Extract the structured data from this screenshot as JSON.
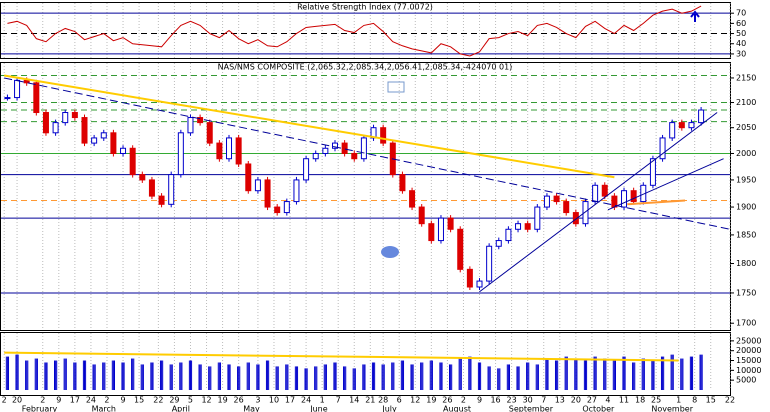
{
  "chart_data": [
    {
      "type": "line",
      "title": "Relative Strength Index (77.0072)",
      "color": "#cc0000",
      "x": [
        1,
        4,
        7,
        10,
        13,
        16,
        19,
        22,
        25,
        28,
        31,
        34,
        37,
        40,
        43,
        46,
        49,
        52,
        55,
        58,
        61,
        64,
        67,
        70,
        73,
        76,
        79,
        82,
        85,
        88,
        91,
        94,
        97,
        100,
        103,
        106,
        109,
        112,
        115,
        118,
        121,
        124,
        127,
        130,
        133,
        136,
        139,
        142,
        145,
        148,
        151,
        154,
        157,
        160,
        163,
        166,
        169,
        172,
        175,
        178,
        181,
        184,
        187,
        190,
        193,
        196,
        199,
        202,
        205,
        208,
        211,
        214,
        217
      ],
      "values": [
        60,
        62,
        58,
        45,
        42,
        50,
        55,
        52,
        44,
        47,
        50,
        43,
        46,
        40,
        39,
        38,
        37,
        48,
        58,
        62,
        58,
        50,
        46,
        53,
        45,
        40,
        44,
        38,
        37,
        42,
        50,
        56,
        57,
        58,
        59,
        53,
        51,
        58,
        60,
        52,
        42,
        38,
        35,
        33,
        31,
        40,
        37,
        30,
        28,
        32,
        45,
        46,
        50,
        52,
        48,
        58,
        60,
        56,
        50,
        46,
        57,
        62,
        55,
        50,
        58,
        53,
        60,
        68,
        72,
        74,
        70,
        72,
        77
      ],
      "xlim": [
        -1,
        226
      ],
      "ylim": [
        26,
        80
      ],
      "yticks": [
        30,
        40,
        50,
        60,
        70
      ],
      "levels": [
        {
          "value": 70,
          "color": "#000099",
          "dash": false
        },
        {
          "value": 50,
          "color": "#000000",
          "dash": true
        },
        {
          "value": 30,
          "color": "#000099",
          "dash": false
        }
      ]
    },
    {
      "type": "candlestick",
      "title": "NAS/NMS COMPOSITE (2,065.32,2,085.34,2,056.41,2,085.34,-424070 01)",
      "log_scale": true,
      "up_color": "#0000cc",
      "down_color": "#dd0000",
      "x": [
        1,
        4,
        7,
        10,
        13,
        16,
        19,
        22,
        25,
        28,
        31,
        34,
        37,
        40,
        43,
        46,
        49,
        52,
        55,
        58,
        61,
        64,
        67,
        70,
        73,
        76,
        79,
        82,
        85,
        88,
        91,
        94,
        97,
        100,
        103,
        106,
        109,
        112,
        115,
        118,
        121,
        124,
        127,
        130,
        133,
        136,
        139,
        142,
        145,
        148,
        151,
        154,
        157,
        160,
        163,
        166,
        169,
        172,
        175,
        178,
        181,
        184,
        187,
        190,
        193,
        196,
        199,
        202,
        205,
        208,
        211,
        214,
        217
      ],
      "values": [
        2110,
        2145,
        2140,
        2080,
        2040,
        2060,
        2080,
        2070,
        2020,
        2030,
        2040,
        2000,
        2010,
        1960,
        1950,
        1920,
        1905,
        1960,
        2040,
        2070,
        2060,
        2020,
        1990,
        2030,
        1980,
        1930,
        1950,
        1900,
        1890,
        1910,
        1950,
        1990,
        2000,
        2010,
        2020,
        2000,
        1990,
        2030,
        2050,
        2020,
        1960,
        1930,
        1900,
        1870,
        1840,
        1880,
        1860,
        1790,
        1760,
        1770,
        1830,
        1840,
        1860,
        1870,
        1860,
        1900,
        1920,
        1910,
        1890,
        1870,
        1910,
        1940,
        1920,
        1900,
        1930,
        1910,
        1940,
        1990,
        2030,
        2060,
        2050,
        2060,
        2085
      ],
      "xlim": [
        -1,
        226
      ],
      "ylim": [
        1689,
        2181
      ],
      "yticks": [
        1700,
        1750,
        1800,
        1850,
        1900,
        1950,
        2000,
        2050,
        2100,
        2150
      ],
      "levels": [
        {
          "value": 2155,
          "color": "#339933",
          "dash": true
        },
        {
          "value": 2100,
          "color": "#339933",
          "dash": true
        },
        {
          "value": 2085,
          "color": "#339933",
          "dash": true
        },
        {
          "value": 2062,
          "color": "#339933",
          "dash": true
        },
        {
          "value": 2000,
          "color": "#33aa33",
          "dash": false
        },
        {
          "value": 1960,
          "color": "#000099",
          "dash": false
        },
        {
          "value": 1912,
          "color": "#ff9933",
          "dash": true
        },
        {
          "value": 1880,
          "color": "#000099",
          "dash": false
        },
        {
          "value": 1750,
          "color": "#000099",
          "dash": false
        }
      ],
      "trendlines": [
        {
          "x": [
            0,
            190
          ],
          "values": [
            2155,
            1955
          ],
          "color": "#ffcc00",
          "dash": false,
          "width": 2
        },
        {
          "x": [
            0,
            226
          ],
          "values": [
            2150,
            1860
          ],
          "color": "#000099",
          "dash": true,
          "width": 1
        },
        {
          "x": [
            148,
            222
          ],
          "values": [
            1752,
            2080
          ],
          "color": "#000099",
          "dash": false,
          "width": 1
        },
        {
          "x": [
            188,
            224
          ],
          "values": [
            1895,
            1990
          ],
          "color": "#000099",
          "dash": false,
          "width": 1
        },
        {
          "x": [
            194,
            212
          ],
          "values": [
            1905,
            1912
          ],
          "color": "#ff9933",
          "dash": false,
          "width": 2
        }
      ]
    },
    {
      "type": "bar",
      "color": "#0000cc",
      "x": [
        1,
        4,
        7,
        10,
        13,
        16,
        19,
        22,
        25,
        28,
        31,
        34,
        37,
        40,
        43,
        46,
        49,
        52,
        55,
        58,
        61,
        64,
        67,
        70,
        73,
        76,
        79,
        82,
        85,
        88,
        91,
        94,
        97,
        100,
        103,
        106,
        109,
        112,
        115,
        118,
        121,
        124,
        127,
        130,
        133,
        136,
        139,
        142,
        145,
        148,
        151,
        154,
        157,
        160,
        163,
        166,
        169,
        172,
        175,
        178,
        181,
        184,
        187,
        190,
        193,
        196,
        199,
        202,
        205,
        208,
        211,
        214,
        217
      ],
      "values": [
        17000,
        18000,
        15000,
        16000,
        14000,
        15000,
        16000,
        14000,
        15000,
        13000,
        14000,
        15000,
        14000,
        16000,
        13000,
        14000,
        15000,
        13000,
        14000,
        15000,
        13000,
        12000,
        14000,
        13000,
        12000,
        14000,
        13000,
        15000,
        12000,
        13000,
        12000,
        11000,
        12000,
        13000,
        14000,
        12000,
        11000,
        13000,
        14000,
        13000,
        14000,
        15000,
        13000,
        14000,
        15000,
        14000,
        13000,
        16000,
        17000,
        14000,
        12000,
        11000,
        13000,
        12000,
        14000,
        13000,
        16000,
        15000,
        17000,
        16000,
        15000,
        17000,
        16000,
        15000,
        17000,
        14000,
        16000,
        15000,
        17000,
        18000,
        16000,
        17000,
        18000
      ],
      "xlim": [
        -1,
        226
      ],
      "ylim": [
        0,
        29000
      ],
      "yticks": [
        5000,
        10000,
        15000,
        20000,
        25000
      ],
      "trendlines": [
        {
          "x": [
            0,
            210
          ],
          "values": [
            19000,
            15000
          ],
          "color": "#ffcc00",
          "dash": false,
          "width": 2
        }
      ],
      "xticks": [
        {
          "value": 0,
          "label": "2"
        },
        {
          "value": 4,
          "label": "20"
        },
        {
          "value": 12,
          "label": "2"
        },
        {
          "value": 17,
          "label": "9"
        },
        {
          "value": 22,
          "label": "17"
        },
        {
          "value": 27,
          "label": "24"
        },
        {
          "value": 32,
          "label": "2"
        },
        {
          "value": 37,
          "label": "9"
        },
        {
          "value": 42,
          "label": "15"
        },
        {
          "value": 48,
          "label": "22"
        },
        {
          "value": 53,
          "label": "29"
        },
        {
          "value": 58,
          "label": "5"
        },
        {
          "value": 63,
          "label": "12"
        },
        {
          "value": 68,
          "label": "19"
        },
        {
          "value": 73,
          "label": "26"
        },
        {
          "value": 79,
          "label": "3"
        },
        {
          "value": 84,
          "label": "10"
        },
        {
          "value": 89,
          "label": "17"
        },
        {
          "value": 94,
          "label": "24"
        },
        {
          "value": 99,
          "label": "1"
        },
        {
          "value": 104,
          "label": "7"
        },
        {
          "value": 109,
          "label": "14"
        },
        {
          "value": 114,
          "label": "21"
        },
        {
          "value": 118,
          "label": "28"
        },
        {
          "value": 123,
          "label": "6"
        },
        {
          "value": 128,
          "label": "12"
        },
        {
          "value": 133,
          "label": "19"
        },
        {
          "value": 138,
          "label": "26"
        },
        {
          "value": 143,
          "label": "2"
        },
        {
          "value": 148,
          "label": "9"
        },
        {
          "value": 153,
          "label": "16"
        },
        {
          "value": 158,
          "label": "23"
        },
        {
          "value": 163,
          "label": "30"
        },
        {
          "value": 168,
          "label": "7"
        },
        {
          "value": 173,
          "label": "13"
        },
        {
          "value": 178,
          "label": "20"
        },
        {
          "value": 183,
          "label": "27"
        },
        {
          "value": 188,
          "label": "4"
        },
        {
          "value": 193,
          "label": "11"
        },
        {
          "value": 198,
          "label": "18"
        },
        {
          "value": 203,
          "label": "25"
        },
        {
          "value": 210,
          "label": "1"
        },
        {
          "value": 215,
          "label": "8"
        },
        {
          "value": 220,
          "label": "15"
        },
        {
          "value": 226,
          "label": "22"
        }
      ],
      "xmonths": [
        {
          "value": 11,
          "label": "February"
        },
        {
          "value": 31,
          "label": "March"
        },
        {
          "value": 55,
          "label": "April"
        },
        {
          "value": 77,
          "label": "May"
        },
        {
          "value": 98,
          "label": "June"
        },
        {
          "value": 120,
          "label": "July"
        },
        {
          "value": 141,
          "label": "August"
        },
        {
          "value": 164,
          "label": "September"
        },
        {
          "value": 185,
          "label": "October"
        },
        {
          "value": 208,
          "label": "November"
        }
      ]
    }
  ]
}
